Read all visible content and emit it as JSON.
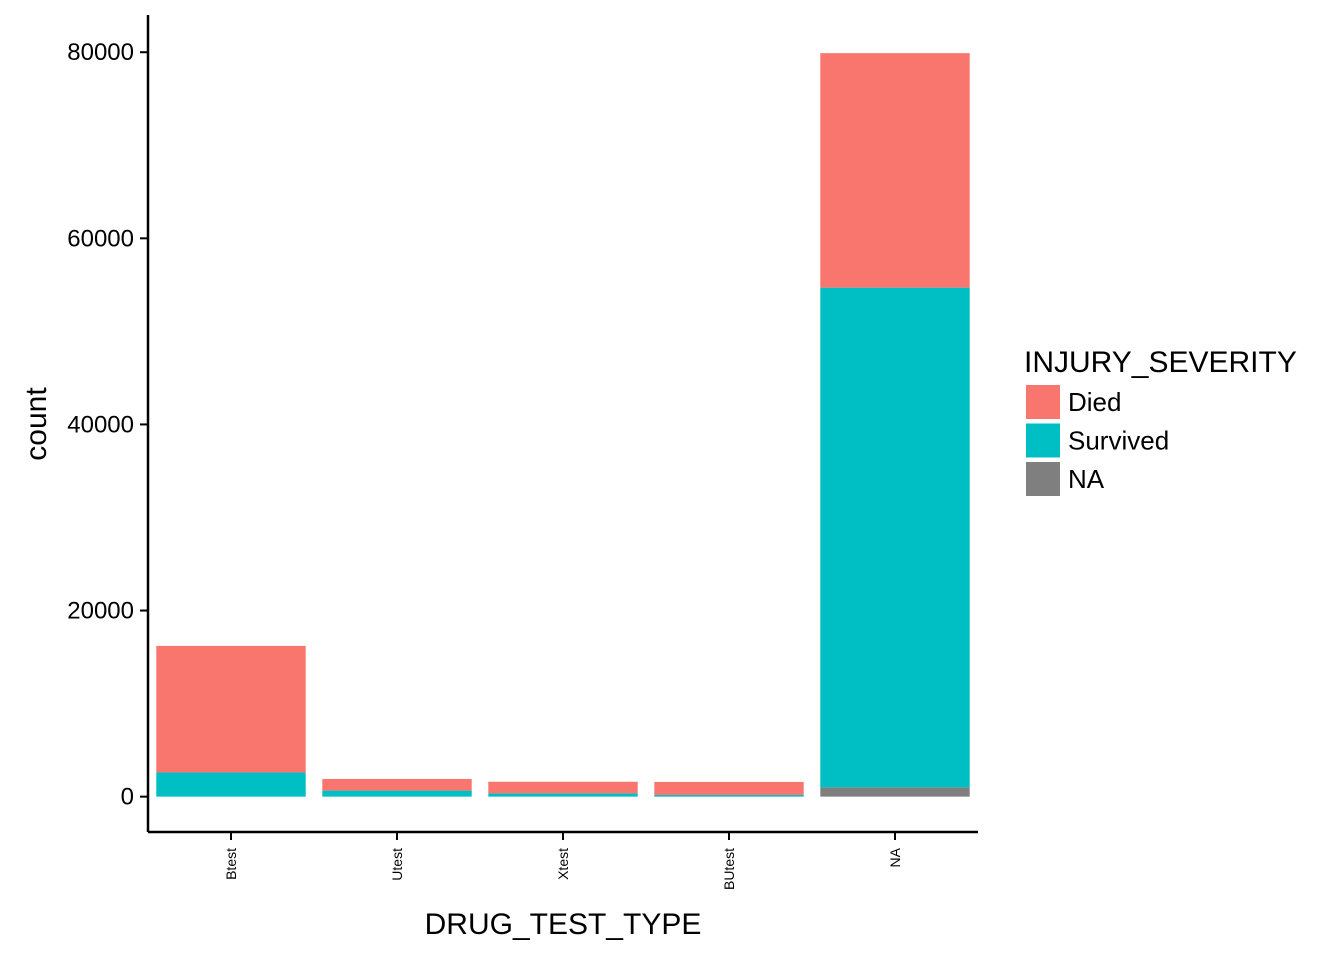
{
  "chart_data": {
    "type": "bar",
    "stacked": true,
    "xlabel": "DRUG_TEST_TYPE",
    "ylabel": "count",
    "categories": [
      "Btest",
      "Utest",
      "Xtest",
      "BUtest",
      "NA"
    ],
    "yticks": [
      0,
      20000,
      40000,
      60000,
      80000
    ],
    "ylim": [
      -3800,
      84000
    ],
    "grid": false,
    "legend": {
      "title": "INJURY_SEVERITY",
      "placement": "right"
    },
    "series": [
      {
        "name": "Died",
        "color": "#F8766D",
        "values": [
          13600,
          1250,
          1250,
          1400,
          25200
        ]
      },
      {
        "name": "Survived",
        "color": "#00BFC4",
        "values": [
          2600,
          650,
          350,
          180,
          53700
        ]
      },
      {
        "name": "NA",
        "color": "#7F7F7F",
        "values": [
          0,
          0,
          0,
          0,
          1000
        ]
      }
    ]
  }
}
